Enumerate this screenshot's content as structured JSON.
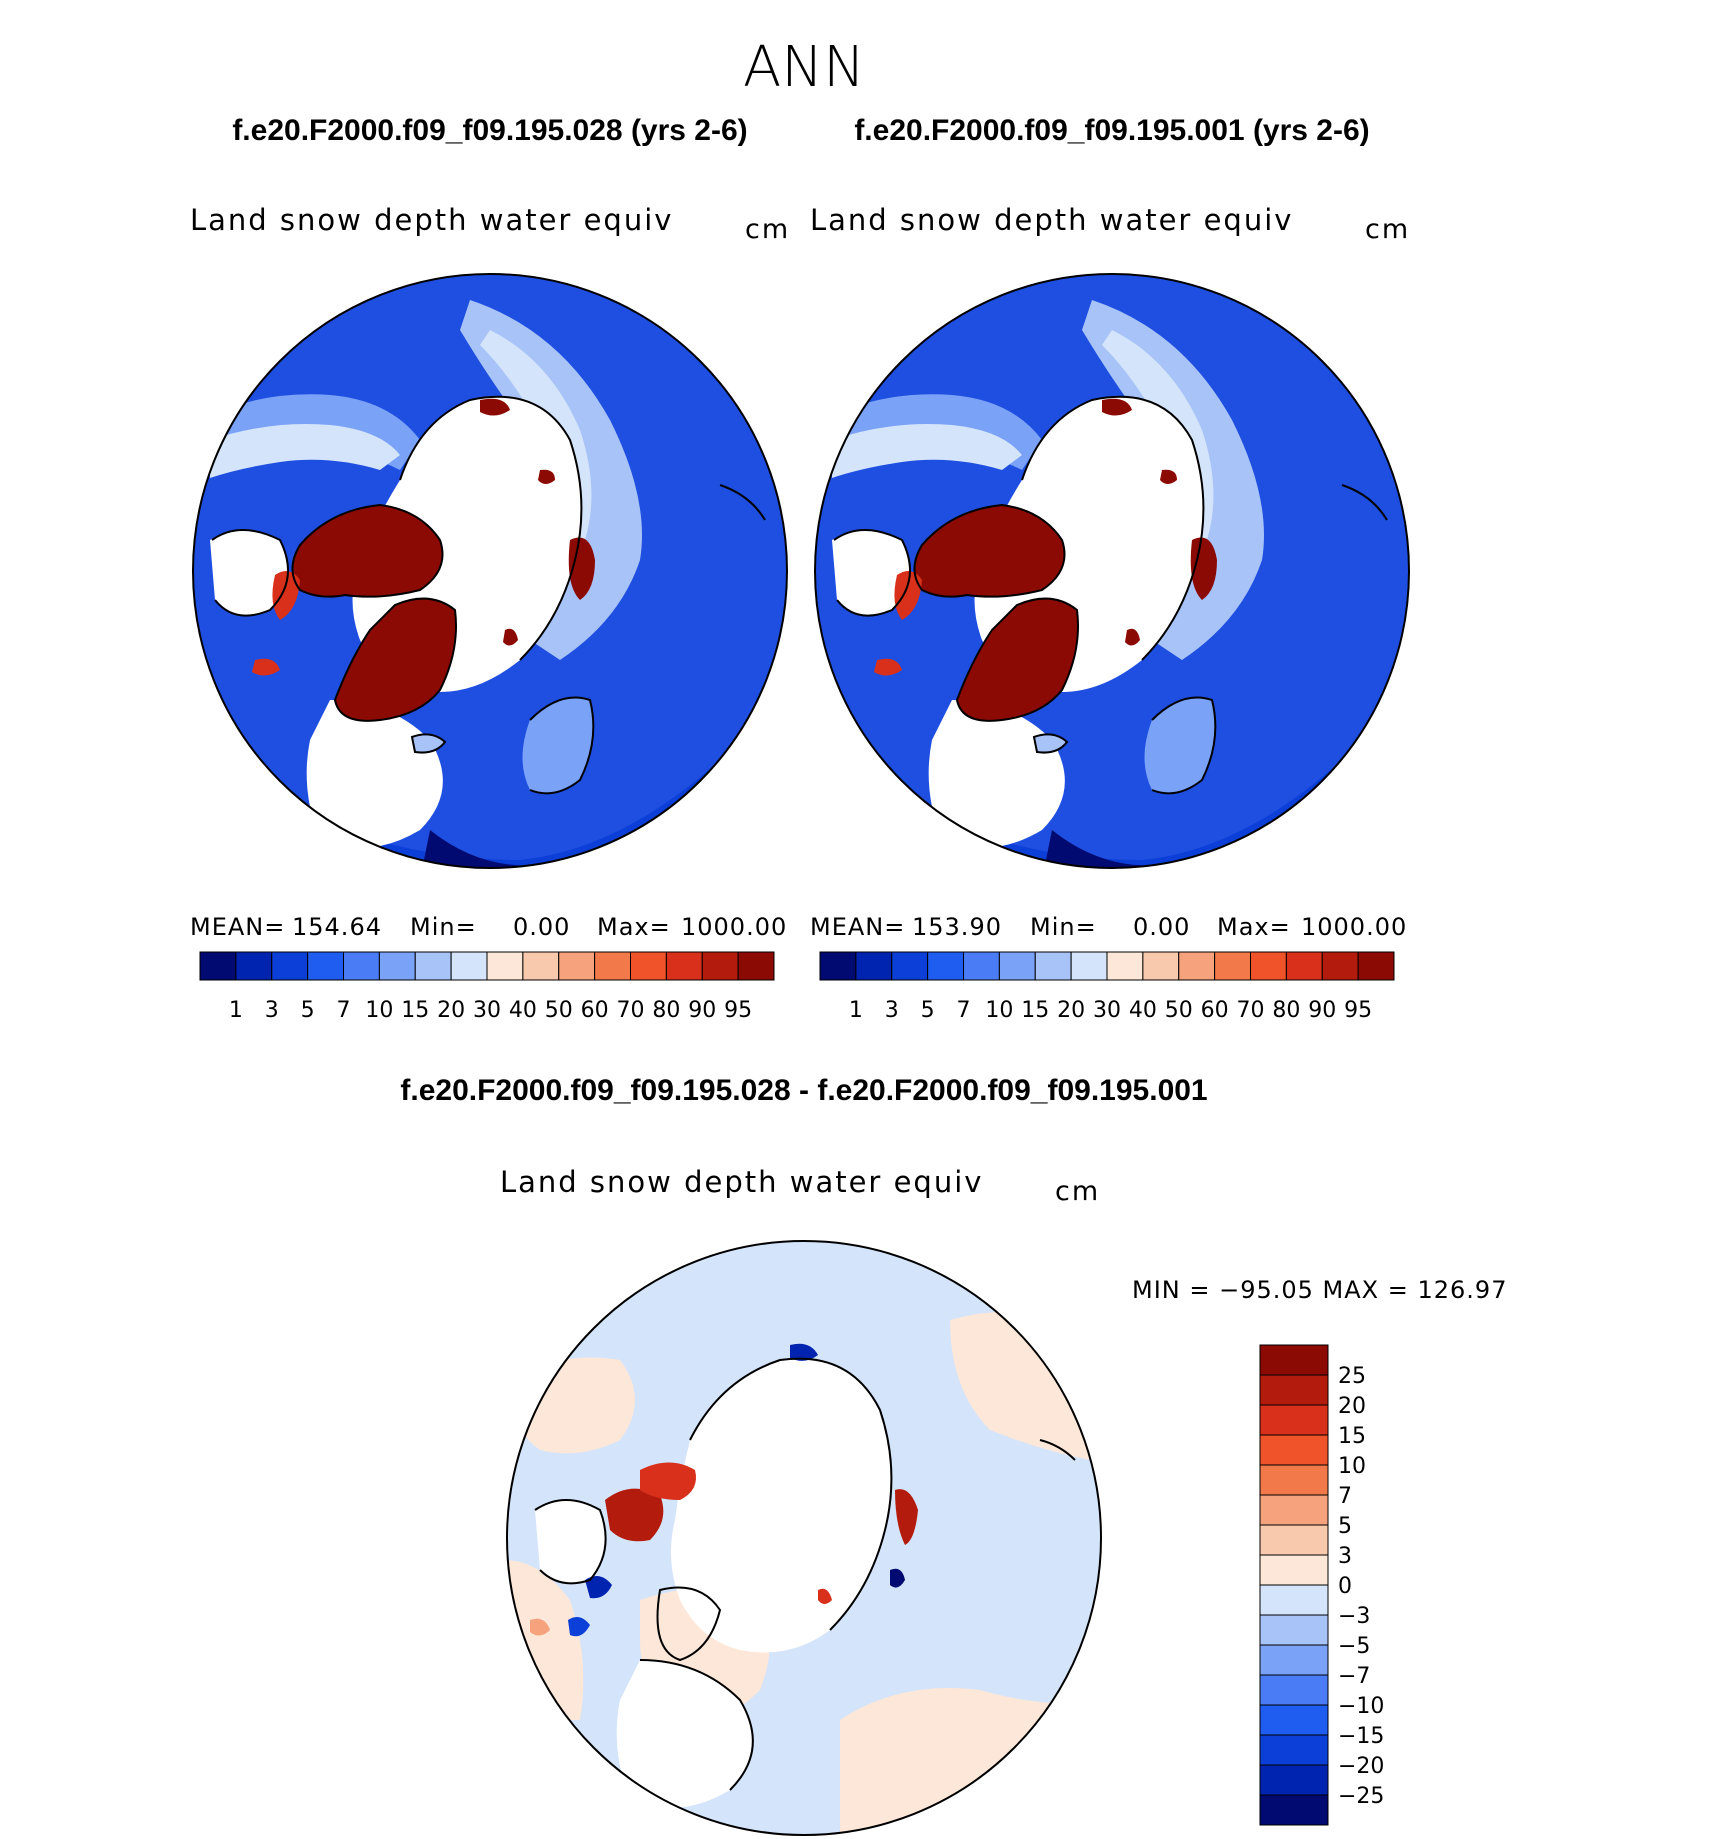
{
  "title": "ANN",
  "colors": {
    "land_white": "#ffffff",
    "coast": "#000000",
    "abs_scale": [
      "#000a70",
      "#0024b0",
      "#0b3fd8",
      "#1f5cf0",
      "#4a7df5",
      "#7aa2f7",
      "#a7c3f8",
      "#d4e4fb",
      "#fde7d8",
      "#f9c9ad",
      "#f5a27d",
      "#f27a4a",
      "#f0522a",
      "#d8301a",
      "#b31c0c",
      "#8c0a04"
    ],
    "diff_scale": [
      "#000a70",
      "#0024b0",
      "#0b3fd8",
      "#1f5cf0",
      "#4a7df5",
      "#7aa2f7",
      "#a7c3f8",
      "#d4e4fb",
      "#fde7d8",
      "#f9c9ad",
      "#f5a27d",
      "#f27a4a",
      "#f0522a",
      "#d8301a",
      "#b31c0c",
      "#8c0a04"
    ]
  },
  "panels": [
    {
      "case": "f.e20.F2000.f09_f09.195.028 (yrs 2-6)",
      "variable": "Land snow depth water equiv",
      "units": "cm",
      "stats": {
        "mean_label": "MEAN=",
        "mean": "154.64",
        "min_label": "Min=",
        "min": "0.00",
        "max_label": "Max=",
        "max": "1000.00"
      }
    },
    {
      "case": "f.e20.F2000.f09_f09.195.001 (yrs 2-6)",
      "variable": "Land snow depth water equiv",
      "units": "cm",
      "stats": {
        "mean_label": "MEAN=",
        "mean": "153.90",
        "min_label": "Min=",
        "min": "0.00",
        "max_label": "Max=",
        "max": "1000.00"
      }
    }
  ],
  "diff": {
    "title": "f.e20.F2000.f09_f09.195.028 - f.e20.F2000.f09_f09.195.001",
    "variable": "Land snow depth water equiv",
    "units": "cm",
    "minmax": "MIN = −95.05 MAX = 126.97"
  },
  "chart_data": [
    {
      "type": "heatmap",
      "projection": "north polar stereographic",
      "title": "f.e20.F2000.f09_f09.195.028 (yrs 2-6)",
      "subtitle": "Land snow depth water equiv",
      "units": "cm",
      "mean": 154.64,
      "min": 0.0,
      "max": 1000.0,
      "colorbar_levels": [
        "1",
        "3",
        "5",
        "7",
        "10",
        "15",
        "20",
        "30",
        "40",
        "50",
        "60",
        "70",
        "80",
        "90",
        "95"
      ]
    },
    {
      "type": "heatmap",
      "projection": "north polar stereographic",
      "title": "f.e20.F2000.f09_f09.195.001 (yrs 2-6)",
      "subtitle": "Land snow depth water equiv",
      "units": "cm",
      "mean": 153.9,
      "min": 0.0,
      "max": 1000.0,
      "colorbar_levels": [
        "1",
        "3",
        "5",
        "7",
        "10",
        "15",
        "20",
        "30",
        "40",
        "50",
        "60",
        "70",
        "80",
        "90",
        "95"
      ]
    },
    {
      "type": "heatmap",
      "projection": "north polar stereographic",
      "title": "f.e20.F2000.f09_f09.195.028 - f.e20.F2000.f09_f09.195.001",
      "subtitle": "Land snow depth water equiv",
      "units": "cm",
      "min": -95.05,
      "max": 126.97,
      "colorbar_levels": [
        "25",
        "20",
        "15",
        "10",
        "7",
        "5",
        "3",
        "0",
        "−3",
        "−5",
        "−7",
        "−10",
        "−15",
        "−20",
        "−25"
      ]
    }
  ]
}
